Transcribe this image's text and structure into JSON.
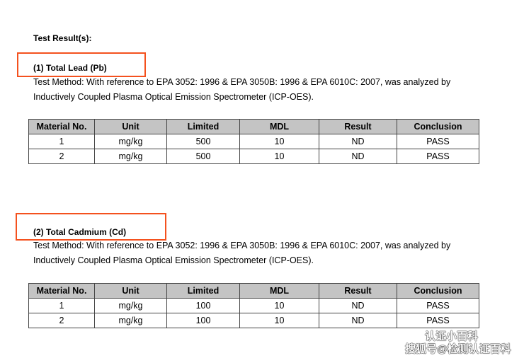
{
  "heading": "Test Result(s):",
  "columns": [
    "Material No.",
    "Unit",
    "Limited",
    "MDL",
    "Result",
    "Conclusion"
  ],
  "sections": [
    {
      "title": "(1) Total Lead (Pb)",
      "method_line1": "Test Method: With reference to EPA 3052: 1996 & EPA 3050B: 1996 & EPA 6010C: 2007, was analyzed by",
      "method_line2": "Inductively Coupled Plasma Optical Emission Spectrometer (ICP-OES).",
      "rows": [
        [
          "1",
          "mg/kg",
          "500",
          "10",
          "ND",
          "PASS"
        ],
        [
          "2",
          "mg/kg",
          "500",
          "10",
          "ND",
          "PASS"
        ]
      ]
    },
    {
      "title": "(2) Total Cadmium (Cd)",
      "method_line1": "Test Method: With reference to EPA 3052: 1996 & EPA 3050B: 1996 & EPA 6010C: 2007, was analyzed by",
      "method_line2": "Inductively Coupled Plasma Optical Emission Spectrometer (ICP-OES).",
      "rows": [
        [
          "1",
          "mg/kg",
          "100",
          "10",
          "ND",
          "PASS"
        ],
        [
          "2",
          "mg/kg",
          "100",
          "10",
          "ND",
          "PASS"
        ]
      ]
    }
  ],
  "watermark": {
    "line1": "认证小百科",
    "line2": "搜狐号@检测认证百科"
  },
  "highlight_color": "#f4511e"
}
